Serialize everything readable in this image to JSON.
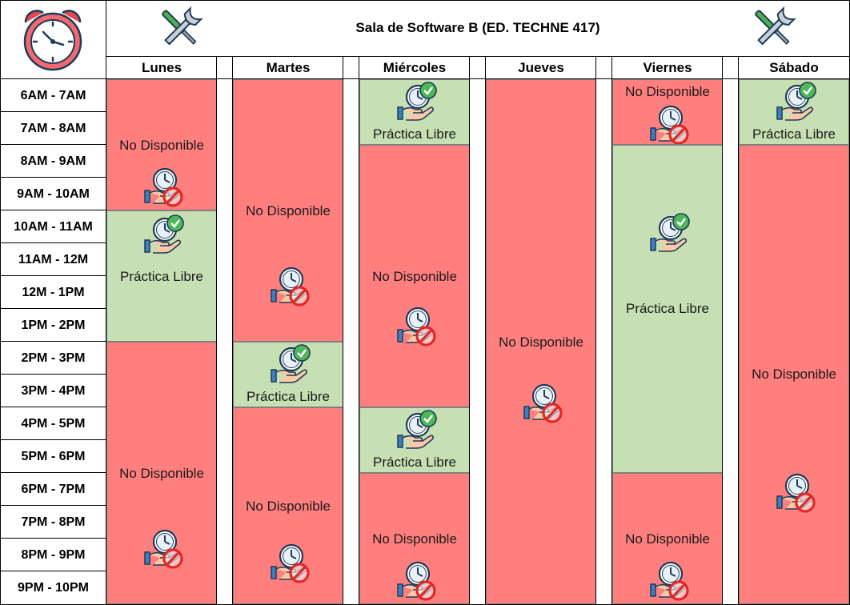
{
  "header": {
    "title": "Sala de Software B (ED. TECHNE 417)"
  },
  "days": [
    "Lunes",
    "Martes",
    "Miércoles",
    "Jueves",
    "Viernes",
    "Sábado"
  ],
  "time_slots": [
    "6AM - 7AM",
    "7AM - 8AM",
    "8AM - 9AM",
    "9AM - 10AM",
    "10AM - 11AM",
    "11AM - 12M",
    "12M - 1PM",
    "1PM - 2PM",
    "2PM - 3PM",
    "3PM - 4PM",
    "4PM - 5PM",
    "5PM - 6PM",
    "6PM - 7PM",
    "7PM - 8PM",
    "8PM - 9PM",
    "9PM - 10PM"
  ],
  "labels": {
    "unavailable": "No Disponible",
    "free": "Práctica Libre"
  },
  "colors": {
    "unavailable": "#ff7f7f",
    "free": "#c6e0b4",
    "border": "#000000"
  },
  "icons": {
    "clock": "clock-icon",
    "tools": "tools-icon",
    "free": "hand-clock-check-icon",
    "unavailable": "hand-clock-blocked-icon"
  },
  "schedule": {
    "monday": [
      {
        "status": "unavailable",
        "label": "No Disponible",
        "from": "6AM",
        "to": "10AM"
      },
      {
        "status": "free",
        "label": "Práctica Libre",
        "from": "10AM",
        "to": "2PM"
      },
      {
        "status": "unavailable",
        "label": "No Disponible",
        "from": "2PM",
        "to": "10PM"
      }
    ],
    "tuesday": [
      {
        "status": "unavailable",
        "label": "No Disponible",
        "from": "6AM",
        "to": "2PM"
      },
      {
        "status": "free",
        "label": "Práctica Libre",
        "from": "2PM",
        "to": "4PM"
      },
      {
        "status": "unavailable",
        "label": "No Disponible",
        "from": "4PM",
        "to": "10PM"
      }
    ],
    "wednesday": [
      {
        "status": "free",
        "label": "Práctica Libre",
        "from": "6AM",
        "to": "8AM"
      },
      {
        "status": "unavailable",
        "label": "No Disponible",
        "from": "8AM",
        "to": "4PM"
      },
      {
        "status": "free",
        "label": "Práctica Libre",
        "from": "4PM",
        "to": "6PM"
      },
      {
        "status": "unavailable",
        "label": "No Disponible",
        "from": "6PM",
        "to": "10PM"
      }
    ],
    "thursday": [
      {
        "status": "unavailable",
        "label": "No Disponible",
        "from": "6AM",
        "to": "10PM"
      }
    ],
    "friday": [
      {
        "status": "unavailable",
        "label": "No Disponible",
        "from": "6AM",
        "to": "8AM"
      },
      {
        "status": "free",
        "label": "Práctica Libre",
        "from": "8AM",
        "to": "6PM"
      },
      {
        "status": "unavailable",
        "label": "No Disponible",
        "from": "6PM",
        "to": "10PM"
      }
    ],
    "saturday": [
      {
        "status": "free",
        "label": "Práctica Libre",
        "from": "6AM",
        "to": "8AM"
      },
      {
        "status": "unavailable",
        "label": "No Disponible",
        "from": "8AM",
        "to": "10PM"
      }
    ]
  }
}
